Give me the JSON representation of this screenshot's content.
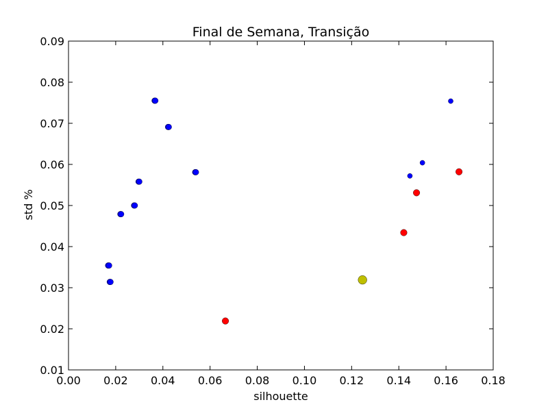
{
  "chart_data": {
    "type": "scatter",
    "title": "Final de Semana, Transição",
    "xlabel": "silhouette",
    "ylabel": "std %",
    "xlim": [
      0.0,
      0.18
    ],
    "ylim": [
      0.01,
      0.09
    ],
    "xticks": [
      "0.00",
      "0.02",
      "0.04",
      "0.06",
      "0.08",
      "0.10",
      "0.12",
      "0.14",
      "0.16",
      "0.18"
    ],
    "yticks": [
      "0.01",
      "0.02",
      "0.03",
      "0.04",
      "0.05",
      "0.06",
      "0.07",
      "0.08",
      "0.09"
    ],
    "grid": false,
    "series": [
      {
        "color": "#0000ff",
        "size": "medium",
        "points": [
          {
            "x": 0.0365,
            "y": 0.0755
          },
          {
            "x": 0.0368,
            "y": 0.0755
          },
          {
            "x": 0.0422,
            "y": 0.0691
          },
          {
            "x": 0.0425,
            "y": 0.0691
          },
          {
            "x": 0.0537,
            "y": 0.0581
          },
          {
            "x": 0.054,
            "y": 0.0581
          },
          {
            "x": 0.0297,
            "y": 0.0558
          },
          {
            "x": 0.03,
            "y": 0.0558
          },
          {
            "x": 0.0278,
            "y": 0.05
          },
          {
            "x": 0.0281,
            "y": 0.05
          },
          {
            "x": 0.022,
            "y": 0.0479
          },
          {
            "x": 0.0223,
            "y": 0.0479
          },
          {
            "x": 0.0168,
            "y": 0.0354
          },
          {
            "x": 0.0172,
            "y": 0.0354
          },
          {
            "x": 0.0175,
            "y": 0.0314
          },
          {
            "x": 0.0178,
            "y": 0.0314
          }
        ]
      },
      {
        "color": "#0000ff",
        "size": "small",
        "points": [
          {
            "x": 0.162,
            "y": 0.0754
          },
          {
            "x": 0.15,
            "y": 0.0604
          },
          {
            "x": 0.1447,
            "y": 0.0572
          }
        ]
      },
      {
        "color": "#ff0000",
        "size": "large",
        "points": [
          {
            "x": 0.1655,
            "y": 0.0582
          },
          {
            "x": 0.1475,
            "y": 0.0531
          },
          {
            "x": 0.1421,
            "y": 0.0434
          },
          {
            "x": 0.0665,
            "y": 0.0219
          }
        ]
      },
      {
        "color": "#bfbf00",
        "size": "xlarge",
        "points": [
          {
            "x": 0.1246,
            "y": 0.0319
          }
        ]
      }
    ]
  }
}
